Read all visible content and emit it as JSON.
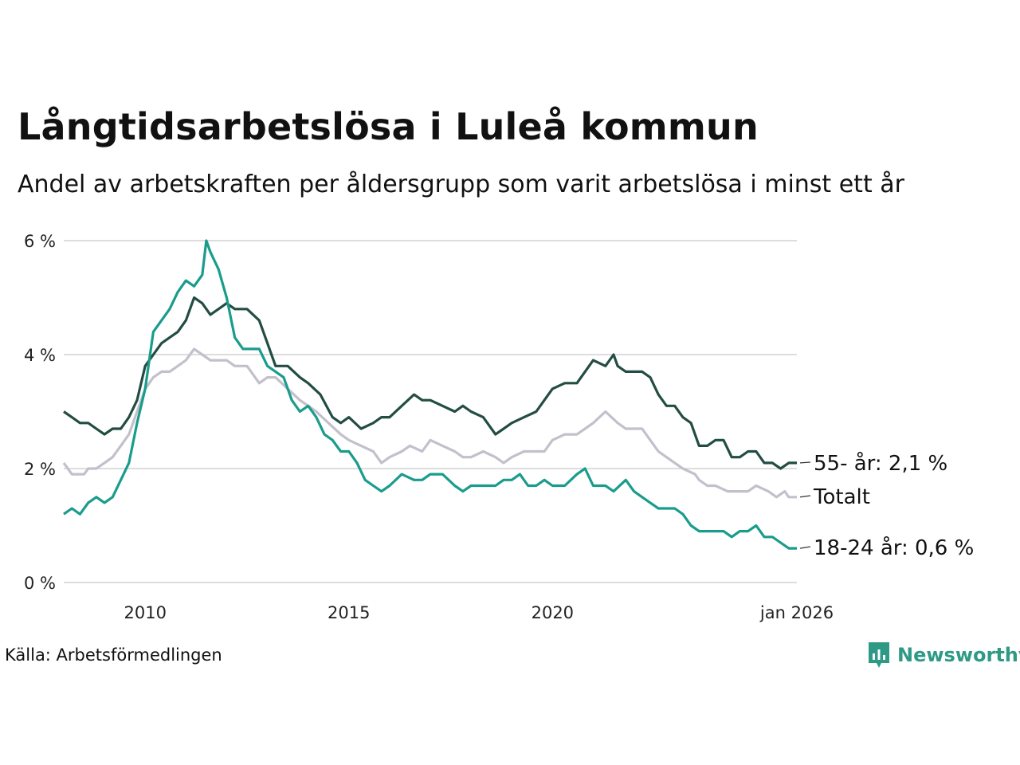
{
  "title": "Långtidsarbetslösa i Luleå kommun",
  "subtitle": "Andel av arbetskraften per åldersgrupp som varit arbetslösa i minst ett år",
  "source": "Källa: Arbetsförmedlingen",
  "brand": "Newsworthy",
  "colors": {
    "youth": "#1a9c8c",
    "older": "#234d43",
    "total": "#c3c0cc",
    "grid": "#dddddd",
    "brand": "#2e9a86"
  },
  "chart_data": {
    "type": "line",
    "x_range": [
      2008.0,
      2026.0
    ],
    "ylim": [
      0,
      6
    ],
    "y_ticks": [
      {
        "value": 0,
        "label": "0 %"
      },
      {
        "value": 2,
        "label": "2 %"
      },
      {
        "value": 4,
        "label": "4 %"
      },
      {
        "value": 6,
        "label": "6 %"
      }
    ],
    "x_ticks": [
      {
        "value": 2010,
        "label": "2010"
      },
      {
        "value": 2015,
        "label": "2015"
      },
      {
        "value": 2020,
        "label": "2020"
      },
      {
        "value": 2026.0,
        "label": "jan 2026"
      }
    ],
    "series": [
      {
        "key": "total",
        "name": "Totalt",
        "end_label": "Totalt",
        "points": [
          [
            2008.0,
            2.1
          ],
          [
            2008.2,
            1.9
          ],
          [
            2008.5,
            1.9
          ],
          [
            2008.6,
            2.0
          ],
          [
            2008.8,
            2.0
          ],
          [
            2009.0,
            2.1
          ],
          [
            2009.2,
            2.2
          ],
          [
            2009.4,
            2.4
          ],
          [
            2009.6,
            2.6
          ],
          [
            2009.8,
            3.0
          ],
          [
            2010.0,
            3.4
          ],
          [
            2010.2,
            3.6
          ],
          [
            2010.4,
            3.7
          ],
          [
            2010.6,
            3.7
          ],
          [
            2010.8,
            3.8
          ],
          [
            2011.0,
            3.9
          ],
          [
            2011.2,
            4.1
          ],
          [
            2011.4,
            4.0
          ],
          [
            2011.6,
            3.9
          ],
          [
            2011.8,
            3.9
          ],
          [
            2012.0,
            3.9
          ],
          [
            2012.2,
            3.8
          ],
          [
            2012.5,
            3.8
          ],
          [
            2012.8,
            3.5
          ],
          [
            2013.0,
            3.6
          ],
          [
            2013.2,
            3.6
          ],
          [
            2013.5,
            3.4
          ],
          [
            2013.8,
            3.2
          ],
          [
            2014.0,
            3.1
          ],
          [
            2014.2,
            3.0
          ],
          [
            2014.5,
            2.8
          ],
          [
            2014.8,
            2.6
          ],
          [
            2015.0,
            2.5
          ],
          [
            2015.3,
            2.4
          ],
          [
            2015.6,
            2.3
          ],
          [
            2015.8,
            2.1
          ],
          [
            2016.0,
            2.2
          ],
          [
            2016.3,
            2.3
          ],
          [
            2016.5,
            2.4
          ],
          [
            2016.8,
            2.3
          ],
          [
            2017.0,
            2.5
          ],
          [
            2017.3,
            2.4
          ],
          [
            2017.6,
            2.3
          ],
          [
            2017.8,
            2.2
          ],
          [
            2018.0,
            2.2
          ],
          [
            2018.3,
            2.3
          ],
          [
            2018.6,
            2.2
          ],
          [
            2018.8,
            2.1
          ],
          [
            2019.0,
            2.2
          ],
          [
            2019.3,
            2.3
          ],
          [
            2019.6,
            2.3
          ],
          [
            2019.8,
            2.3
          ],
          [
            2020.0,
            2.5
          ],
          [
            2020.3,
            2.6
          ],
          [
            2020.6,
            2.6
          ],
          [
            2020.8,
            2.7
          ],
          [
            2021.0,
            2.8
          ],
          [
            2021.3,
            3.0
          ],
          [
            2021.6,
            2.8
          ],
          [
            2021.8,
            2.7
          ],
          [
            2022.0,
            2.7
          ],
          [
            2022.2,
            2.7
          ],
          [
            2022.4,
            2.5
          ],
          [
            2022.6,
            2.3
          ],
          [
            2022.8,
            2.2
          ],
          [
            2023.0,
            2.1
          ],
          [
            2023.2,
            2.0
          ],
          [
            2023.5,
            1.9
          ],
          [
            2023.6,
            1.8
          ],
          [
            2023.8,
            1.7
          ],
          [
            2024.0,
            1.7
          ],
          [
            2024.3,
            1.6
          ],
          [
            2024.6,
            1.6
          ],
          [
            2024.8,
            1.6
          ],
          [
            2025.0,
            1.7
          ],
          [
            2025.3,
            1.6
          ],
          [
            2025.5,
            1.5
          ],
          [
            2025.7,
            1.6
          ],
          [
            2025.8,
            1.5
          ],
          [
            2026.0,
            1.5
          ]
        ]
      },
      {
        "key": "older",
        "name": "55- år",
        "end_label": "55- år: 2,1 %",
        "points": [
          [
            2008.0,
            3.0
          ],
          [
            2008.2,
            2.9
          ],
          [
            2008.4,
            2.8
          ],
          [
            2008.6,
            2.8
          ],
          [
            2008.8,
            2.7
          ],
          [
            2009.0,
            2.6
          ],
          [
            2009.2,
            2.7
          ],
          [
            2009.4,
            2.7
          ],
          [
            2009.6,
            2.9
          ],
          [
            2009.8,
            3.2
          ],
          [
            2010.0,
            3.8
          ],
          [
            2010.2,
            4.0
          ],
          [
            2010.4,
            4.2
          ],
          [
            2010.6,
            4.3
          ],
          [
            2010.8,
            4.4
          ],
          [
            2011.0,
            4.6
          ],
          [
            2011.2,
            5.0
          ],
          [
            2011.4,
            4.9
          ],
          [
            2011.6,
            4.7
          ],
          [
            2011.8,
            4.8
          ],
          [
            2012.0,
            4.9
          ],
          [
            2012.2,
            4.8
          ],
          [
            2012.5,
            4.8
          ],
          [
            2012.8,
            4.6
          ],
          [
            2013.0,
            4.2
          ],
          [
            2013.2,
            3.8
          ],
          [
            2013.5,
            3.8
          ],
          [
            2013.8,
            3.6
          ],
          [
            2014.0,
            3.5
          ],
          [
            2014.3,
            3.3
          ],
          [
            2014.6,
            2.9
          ],
          [
            2014.8,
            2.8
          ],
          [
            2015.0,
            2.9
          ],
          [
            2015.3,
            2.7
          ],
          [
            2015.6,
            2.8
          ],
          [
            2015.8,
            2.9
          ],
          [
            2016.0,
            2.9
          ],
          [
            2016.3,
            3.1
          ],
          [
            2016.6,
            3.3
          ],
          [
            2016.8,
            3.2
          ],
          [
            2017.0,
            3.2
          ],
          [
            2017.3,
            3.1
          ],
          [
            2017.6,
            3.0
          ],
          [
            2017.8,
            3.1
          ],
          [
            2018.0,
            3.0
          ],
          [
            2018.3,
            2.9
          ],
          [
            2018.6,
            2.6
          ],
          [
            2018.8,
            2.7
          ],
          [
            2019.0,
            2.8
          ],
          [
            2019.3,
            2.9
          ],
          [
            2019.6,
            3.0
          ],
          [
            2019.8,
            3.2
          ],
          [
            2020.0,
            3.4
          ],
          [
            2020.3,
            3.5
          ],
          [
            2020.6,
            3.5
          ],
          [
            2020.8,
            3.7
          ],
          [
            2021.0,
            3.9
          ],
          [
            2021.3,
            3.8
          ],
          [
            2021.5,
            4.0
          ],
          [
            2021.6,
            3.8
          ],
          [
            2021.8,
            3.7
          ],
          [
            2022.0,
            3.7
          ],
          [
            2022.2,
            3.7
          ],
          [
            2022.4,
            3.6
          ],
          [
            2022.6,
            3.3
          ],
          [
            2022.8,
            3.1
          ],
          [
            2023.0,
            3.1
          ],
          [
            2023.2,
            2.9
          ],
          [
            2023.4,
            2.8
          ],
          [
            2023.6,
            2.4
          ],
          [
            2023.8,
            2.4
          ],
          [
            2024.0,
            2.5
          ],
          [
            2024.2,
            2.5
          ],
          [
            2024.4,
            2.2
          ],
          [
            2024.6,
            2.2
          ],
          [
            2024.8,
            2.3
          ],
          [
            2025.0,
            2.3
          ],
          [
            2025.2,
            2.1
          ],
          [
            2025.4,
            2.1
          ],
          [
            2025.6,
            2.0
          ],
          [
            2025.8,
            2.1
          ],
          [
            2026.0,
            2.1
          ]
        ]
      },
      {
        "key": "youth",
        "name": "18-24 år",
        "end_label": "18-24 år: 0,6 %",
        "points": [
          [
            2008.0,
            1.2
          ],
          [
            2008.2,
            1.3
          ],
          [
            2008.4,
            1.2
          ],
          [
            2008.6,
            1.4
          ],
          [
            2008.8,
            1.5
          ],
          [
            2009.0,
            1.4
          ],
          [
            2009.2,
            1.5
          ],
          [
            2009.4,
            1.8
          ],
          [
            2009.6,
            2.1
          ],
          [
            2009.8,
            2.8
          ],
          [
            2010.0,
            3.4
          ],
          [
            2010.2,
            4.4
          ],
          [
            2010.4,
            4.6
          ],
          [
            2010.6,
            4.8
          ],
          [
            2010.8,
            5.1
          ],
          [
            2011.0,
            5.3
          ],
          [
            2011.2,
            5.2
          ],
          [
            2011.4,
            5.4
          ],
          [
            2011.5,
            6.0
          ],
          [
            2011.6,
            5.8
          ],
          [
            2011.8,
            5.5
          ],
          [
            2012.0,
            5.0
          ],
          [
            2012.2,
            4.3
          ],
          [
            2012.4,
            4.1
          ],
          [
            2012.6,
            4.1
          ],
          [
            2012.8,
            4.1
          ],
          [
            2013.0,
            3.8
          ],
          [
            2013.2,
            3.7
          ],
          [
            2013.4,
            3.6
          ],
          [
            2013.6,
            3.2
          ],
          [
            2013.8,
            3.0
          ],
          [
            2014.0,
            3.1
          ],
          [
            2014.2,
            2.9
          ],
          [
            2014.4,
            2.6
          ],
          [
            2014.6,
            2.5
          ],
          [
            2014.8,
            2.3
          ],
          [
            2015.0,
            2.3
          ],
          [
            2015.2,
            2.1
          ],
          [
            2015.4,
            1.8
          ],
          [
            2015.6,
            1.7
          ],
          [
            2015.8,
            1.6
          ],
          [
            2016.0,
            1.7
          ],
          [
            2016.3,
            1.9
          ],
          [
            2016.6,
            1.8
          ],
          [
            2016.8,
            1.8
          ],
          [
            2017.0,
            1.9
          ],
          [
            2017.3,
            1.9
          ],
          [
            2017.6,
            1.7
          ],
          [
            2017.8,
            1.6
          ],
          [
            2018.0,
            1.7
          ],
          [
            2018.3,
            1.7
          ],
          [
            2018.6,
            1.7
          ],
          [
            2018.8,
            1.8
          ],
          [
            2019.0,
            1.8
          ],
          [
            2019.2,
            1.9
          ],
          [
            2019.4,
            1.7
          ],
          [
            2019.6,
            1.7
          ],
          [
            2019.8,
            1.8
          ],
          [
            2020.0,
            1.7
          ],
          [
            2020.3,
            1.7
          ],
          [
            2020.6,
            1.9
          ],
          [
            2020.8,
            2.0
          ],
          [
            2021.0,
            1.7
          ],
          [
            2021.3,
            1.7
          ],
          [
            2021.5,
            1.6
          ],
          [
            2021.8,
            1.8
          ],
          [
            2022.0,
            1.6
          ],
          [
            2022.2,
            1.5
          ],
          [
            2022.4,
            1.4
          ],
          [
            2022.6,
            1.3
          ],
          [
            2022.8,
            1.3
          ],
          [
            2023.0,
            1.3
          ],
          [
            2023.2,
            1.2
          ],
          [
            2023.4,
            1.0
          ],
          [
            2023.6,
            0.9
          ],
          [
            2023.8,
            0.9
          ],
          [
            2024.0,
            0.9
          ],
          [
            2024.2,
            0.9
          ],
          [
            2024.4,
            0.8
          ],
          [
            2024.6,
            0.9
          ],
          [
            2024.8,
            0.9
          ],
          [
            2025.0,
            1.0
          ],
          [
            2025.2,
            0.8
          ],
          [
            2025.4,
            0.8
          ],
          [
            2025.6,
            0.7
          ],
          [
            2025.8,
            0.6
          ],
          [
            2026.0,
            0.6
          ]
        ]
      }
    ]
  }
}
